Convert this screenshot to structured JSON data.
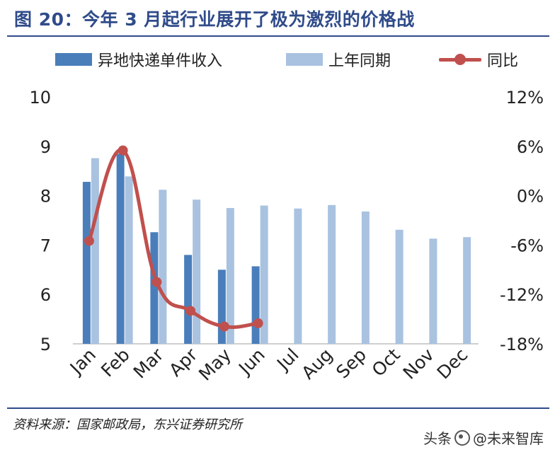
{
  "figure": {
    "title": "图 20：今年 3 月起行业展开了极为激烈的价格战",
    "source": "资料来源：国家邮政局，东兴证券研究所",
    "watermark_prefix": "头条",
    "watermark_brand": "@未来智库"
  },
  "legend": {
    "series1": "异地快递单件收入",
    "series2": "上年同期",
    "series3": "同比"
  },
  "colors": {
    "current_bar": "#4a7ebb",
    "prior_bar": "#a9c2e0",
    "yoy_line": "#c0504d",
    "title": "#2f4b8a"
  },
  "chart_data": {
    "type": "bar",
    "categories": [
      "Jan",
      "Feb",
      "Mar",
      "Apr",
      "May",
      "Jun",
      "Jul",
      "Aug",
      "Sep",
      "Oct",
      "Nov",
      "Dec"
    ],
    "series": [
      {
        "name": "异地快递单件收入",
        "type": "bar",
        "axis": "left",
        "values": [
          8.28,
          8.85,
          7.26,
          6.8,
          6.5,
          6.57,
          null,
          null,
          null,
          null,
          null,
          null
        ]
      },
      {
        "name": "上年同期",
        "type": "bar",
        "axis": "left",
        "values": [
          8.76,
          8.39,
          8.12,
          7.92,
          7.75,
          7.8,
          7.74,
          7.81,
          7.68,
          7.31,
          7.13,
          7.16
        ]
      },
      {
        "name": "同比",
        "type": "line",
        "axis": "right",
        "unit": "%",
        "values": [
          -5.5,
          5.5,
          -10.5,
          -14.0,
          -15.9,
          -15.5,
          null,
          null,
          null,
          null,
          null,
          null
        ]
      }
    ],
    "ylim": [
      5,
      10
    ],
    "yticks": [
      "5",
      "6",
      "7",
      "8",
      "9",
      "10"
    ],
    "y2lim": [
      -18,
      12
    ],
    "y2ticks": [
      "-18%",
      "-12%",
      "-6%",
      "0%",
      "6%",
      "12%"
    ],
    "grid": false,
    "legend_position": "top"
  }
}
